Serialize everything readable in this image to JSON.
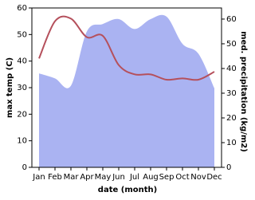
{
  "chart_data": {
    "type": "line_area",
    "categories": [
      "Jan",
      "Feb",
      "Mar",
      "Apr",
      "May",
      "Jun",
      "Jul",
      "Aug",
      "Sep",
      "Oct",
      "Nov",
      "Dec"
    ],
    "series": [
      {
        "name": "max temp",
        "color": "#b5505c",
        "axis": "y",
        "kind": "line",
        "values": [
          41,
          55,
          56,
          49,
          49.5,
          38.5,
          35,
          35,
          33,
          33.5,
          33,
          36
        ]
      },
      {
        "name": "med. precipitation",
        "color": "#aab3f2",
        "axis": "y2",
        "kind": "area",
        "values": [
          38,
          36,
          33,
          55,
          58,
          60,
          56,
          60,
          61,
          50,
          46,
          32
        ]
      }
    ],
    "ylabel": "max temp (C)",
    "y2label": "med. precipitation (kg/m2)",
    "xlabel": "date (month)",
    "ylim": [
      0,
      60
    ],
    "yticks": [
      0,
      10,
      20,
      30,
      40,
      50,
      60
    ],
    "y2lim": [
      0,
      64.5
    ],
    "y2ticks": [
      0,
      10,
      20,
      30,
      40,
      50,
      60
    ]
  }
}
